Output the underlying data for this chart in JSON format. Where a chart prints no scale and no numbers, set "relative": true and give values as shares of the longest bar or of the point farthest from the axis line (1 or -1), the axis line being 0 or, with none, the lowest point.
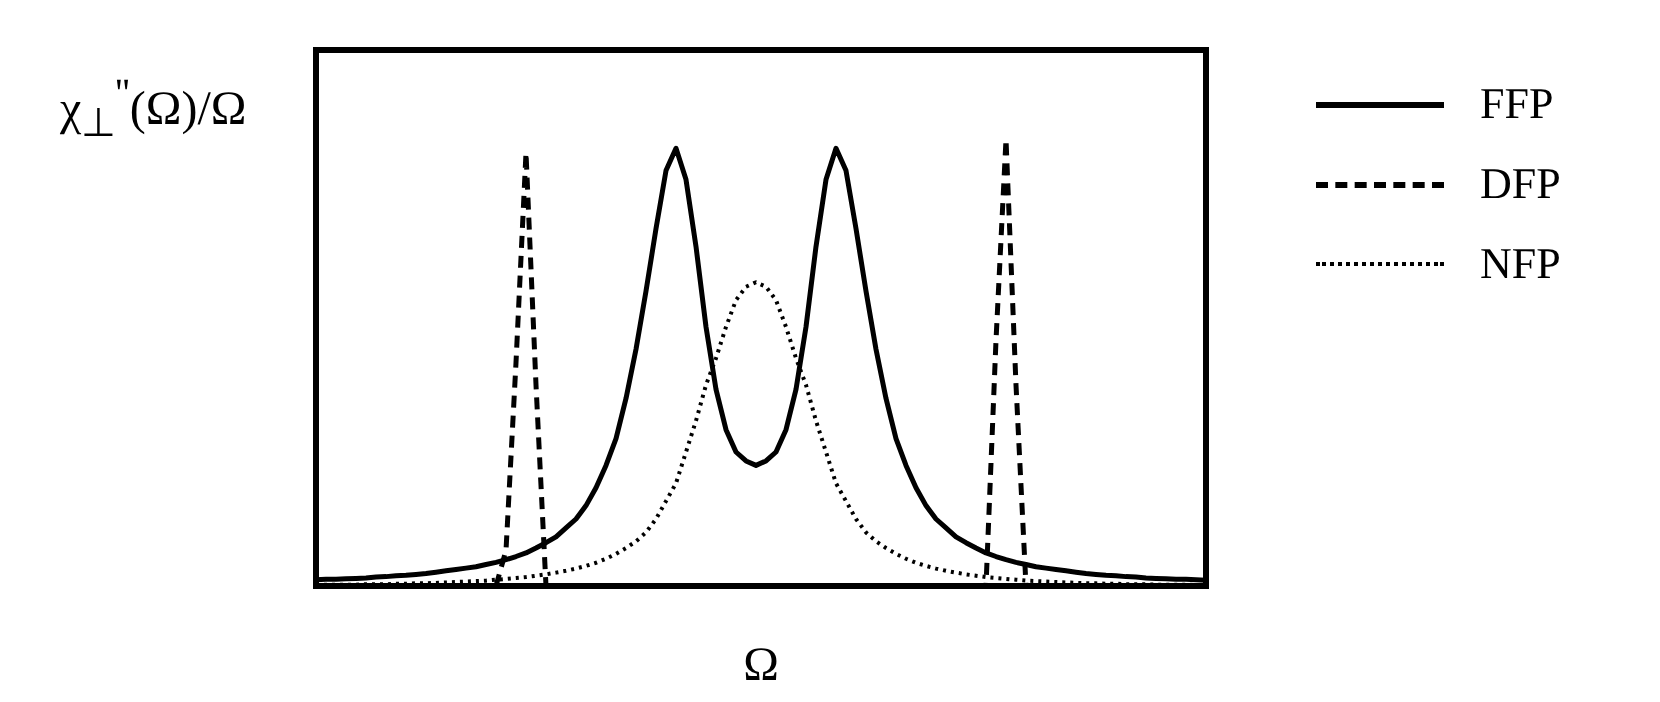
{
  "chart_data": {
    "type": "line",
    "relative": true,
    "xlabel": "Ω",
    "ylabel": "χ$_{⊥}$$^{''}$(Ω)/Ω",
    "legend": "right",
    "marker": "none",
    "categories": [
      null,
      null,
      null,
      null,
      null,
      null,
      null,
      null,
      null,
      null,
      null,
      null,
      null,
      null,
      null,
      null,
      null,
      null,
      null,
      null,
      null,
      null,
      null,
      null,
      null,
      null,
      null,
      null,
      null,
      null,
      null,
      null,
      null,
      null,
      null,
      null,
      null,
      null,
      null,
      null,
      null,
      null,
      null,
      null,
      null,
      null,
      null,
      null,
      null,
      null,
      null,
      null,
      null,
      null,
      null,
      null,
      null,
      null,
      null,
      null,
      null,
      null,
      null,
      null,
      null,
      null,
      null,
      null,
      null,
      null,
      null,
      null,
      null,
      null,
      null,
      null,
      null,
      null,
      null,
      null,
      null,
      null,
      null,
      null,
      null,
      null,
      null,
      null,
      null,
      null
    ],
    "series": [
      {
        "name": "FFP",
        "color": "#000000",
        "line_style": "solid",
        "values": [
          0.014,
          0.015,
          0.015,
          0.016,
          0.017,
          0.018,
          0.02,
          0.021,
          0.023,
          0.024,
          0.026,
          0.028,
          0.031,
          0.034,
          0.037,
          0.04,
          0.043,
          0.048,
          0.053,
          0.059,
          0.066,
          0.074,
          0.085,
          0.097,
          0.11,
          0.13,
          0.15,
          0.18,
          0.22,
          0.27,
          0.33,
          0.42,
          0.53,
          0.66,
          0.8,
          0.93,
          0.98,
          0.91,
          0.76,
          0.58,
          0.44,
          0.35,
          0.3,
          0.28,
          0.27,
          0.28,
          0.3,
          0.35,
          0.44,
          0.58,
          0.76,
          0.91,
          0.98,
          0.93,
          0.8,
          0.66,
          0.53,
          0.42,
          0.33,
          0.27,
          0.22,
          0.18,
          0.15,
          0.13,
          0.11,
          0.097,
          0.085,
          0.074,
          0.066,
          0.059,
          0.053,
          0.048,
          0.043,
          0.04,
          0.037,
          0.034,
          0.031,
          0.028,
          0.026,
          0.024,
          0.023,
          0.021,
          0.02,
          0.018,
          0.017,
          0.016,
          0.015,
          0.015,
          0.014,
          0.013
        ]
      },
      {
        "name": "DFP",
        "color": "#000000",
        "line_style": "dashed",
        "values": [
          0,
          0,
          0,
          0,
          0,
          0,
          0,
          0,
          0,
          0,
          0,
          0,
          0,
          0,
          0,
          0,
          0,
          0,
          0,
          0.08,
          0.5,
          0.97,
          0.45,
          0,
          0,
          0,
          0,
          0,
          0,
          0,
          0,
          0,
          0,
          0,
          0,
          0,
          0,
          0,
          0,
          0,
          0,
          0,
          0,
          0,
          0,
          0,
          0,
          0,
          0,
          0,
          0,
          0,
          0,
          0,
          0,
          0,
          0,
          0,
          0,
          0,
          0,
          0,
          0,
          0,
          0,
          0,
          0,
          0,
          0.55,
          1.0,
          0.45,
          0,
          0,
          0,
          0,
          0,
          0,
          0,
          0,
          0,
          0,
          0,
          0,
          0,
          0,
          0,
          0,
          0,
          0,
          0
        ]
      },
      {
        "name": "NFP",
        "color": "#000000",
        "line_style": "dotted",
        "values": [
          0.002,
          0.003,
          0.003,
          0.003,
          0.003,
          0.004,
          0.004,
          0.004,
          0.005,
          0.005,
          0.006,
          0.006,
          0.007,
          0.008,
          0.009,
          0.01,
          0.011,
          0.012,
          0.014,
          0.016,
          0.018,
          0.02,
          0.023,
          0.026,
          0.03,
          0.034,
          0.039,
          0.045,
          0.052,
          0.061,
          0.072,
          0.085,
          0.1,
          0.12,
          0.15,
          0.19,
          0.23,
          0.3,
          0.37,
          0.45,
          0.51,
          0.58,
          0.64,
          0.67,
          0.68,
          0.67,
          0.64,
          0.58,
          0.51,
          0.45,
          0.37,
          0.3,
          0.23,
          0.19,
          0.15,
          0.12,
          0.1,
          0.085,
          0.072,
          0.061,
          0.052,
          0.045,
          0.039,
          0.034,
          0.03,
          0.026,
          0.023,
          0.02,
          0.018,
          0.016,
          0.014,
          0.012,
          0.011,
          0.01,
          0.009,
          0.008,
          0.007,
          0.006,
          0.006,
          0.005,
          0.005,
          0.004,
          0.004,
          0.004,
          0.003,
          0.003,
          0.003,
          0.003,
          0.002,
          0.002
        ]
      }
    ]
  }
}
